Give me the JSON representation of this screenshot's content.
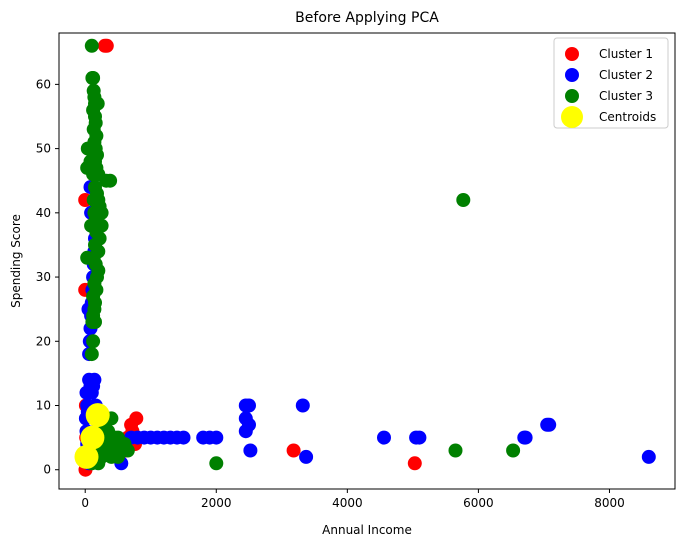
{
  "chart_data": {
    "type": "scatter",
    "title": "Before Applying PCA",
    "xlabel": "Annual Income",
    "ylabel": "Spending Score",
    "xlim": [
      -400,
      9000
    ],
    "ylim": [
      -3,
      68
    ],
    "xticks": [
      0,
      2000,
      4000,
      6000,
      8000
    ],
    "yticks": [
      0,
      10,
      20,
      30,
      40,
      50,
      60
    ],
    "grid": false,
    "legend_position": "top-right",
    "series": [
      {
        "name": "Cluster 1",
        "color": "#ff0000",
        "points": [
          [
            330,
            66
          ],
          [
            300,
            66
          ],
          [
            0,
            42
          ],
          [
            0,
            28
          ],
          [
            5,
            0
          ],
          [
            20,
            1
          ],
          [
            40,
            2
          ],
          [
            700,
            7
          ],
          [
            780,
            8
          ],
          [
            760,
            4
          ],
          [
            650,
            5
          ],
          [
            600,
            3
          ],
          [
            720,
            6
          ],
          [
            3180,
            3
          ],
          [
            5030,
            1
          ],
          [
            10,
            10
          ],
          [
            15,
            5
          ],
          [
            30,
            3
          ]
        ]
      },
      {
        "name": "Cluster 2",
        "color": "#0000ff",
        "points": [
          [
            50,
            25
          ],
          [
            60,
            18
          ],
          [
            70,
            20
          ],
          [
            80,
            22
          ],
          [
            90,
            24
          ],
          [
            100,
            26
          ],
          [
            110,
            28
          ],
          [
            120,
            30
          ],
          [
            130,
            32
          ],
          [
            140,
            34
          ],
          [
            150,
            36
          ],
          [
            100,
            38
          ],
          [
            90,
            40
          ],
          [
            80,
            44
          ],
          [
            60,
            14
          ],
          [
            80,
            13
          ],
          [
            100,
            12
          ],
          [
            120,
            13
          ],
          [
            140,
            14
          ],
          [
            160,
            10
          ],
          [
            200,
            9
          ],
          [
            240,
            8
          ],
          [
            280,
            7
          ],
          [
            20,
            12
          ],
          [
            30,
            10
          ],
          [
            40,
            9
          ],
          [
            10,
            8
          ],
          [
            20,
            6
          ],
          [
            30,
            4
          ],
          [
            40,
            3
          ],
          [
            50,
            2
          ],
          [
            60,
            1
          ],
          [
            80,
            5
          ],
          [
            120,
            4
          ],
          [
            160,
            6
          ],
          [
            200,
            5
          ],
          [
            300,
            4
          ],
          [
            400,
            3
          ],
          [
            500,
            2
          ],
          [
            550,
            1
          ],
          [
            600,
            4
          ],
          [
            700,
            5
          ],
          [
            800,
            5
          ],
          [
            900,
            5
          ],
          [
            1000,
            5
          ],
          [
            1100,
            5
          ],
          [
            1200,
            5
          ],
          [
            1300,
            5
          ],
          [
            1400,
            5
          ],
          [
            1500,
            5
          ],
          [
            1800,
            5
          ],
          [
            1900,
            5
          ],
          [
            2000,
            5
          ],
          [
            2450,
            10
          ],
          [
            2500,
            10
          ],
          [
            2450,
            8
          ],
          [
            2500,
            7
          ],
          [
            2450,
            6
          ],
          [
            2520,
            3
          ],
          [
            3320,
            10
          ],
          [
            3370,
            2
          ],
          [
            4560,
            5
          ],
          [
            5050,
            5
          ],
          [
            5100,
            5
          ],
          [
            6700,
            5
          ],
          [
            6720,
            5
          ],
          [
            7050,
            7
          ],
          [
            7080,
            7
          ],
          [
            8600,
            2
          ]
        ]
      },
      {
        "name": "Cluster 3",
        "color": "#008000",
        "points": [
          [
            100,
            66
          ],
          [
            110,
            61
          ],
          [
            120,
            61
          ],
          [
            130,
            59
          ],
          [
            140,
            58
          ],
          [
            150,
            57
          ],
          [
            190,
            57
          ],
          [
            120,
            56
          ],
          [
            150,
            55
          ],
          [
            160,
            54
          ],
          [
            130,
            53
          ],
          [
            170,
            52
          ],
          [
            140,
            51
          ],
          [
            160,
            50
          ],
          [
            40,
            50
          ],
          [
            180,
            49
          ],
          [
            80,
            48
          ],
          [
            150,
            48
          ],
          [
            170,
            47
          ],
          [
            30,
            47
          ],
          [
            120,
            46
          ],
          [
            200,
            46
          ],
          [
            320,
            45
          ],
          [
            380,
            45
          ],
          [
            150,
            44
          ],
          [
            180,
            43
          ],
          [
            200,
            42
          ],
          [
            130,
            42
          ],
          [
            220,
            41
          ],
          [
            140,
            40
          ],
          [
            250,
            40
          ],
          [
            160,
            39
          ],
          [
            200,
            38
          ],
          [
            250,
            38
          ],
          [
            90,
            38
          ],
          [
            170,
            37
          ],
          [
            220,
            36
          ],
          [
            150,
            35
          ],
          [
            200,
            34
          ],
          [
            130,
            33
          ],
          [
            30,
            33
          ],
          [
            160,
            32
          ],
          [
            200,
            31
          ],
          [
            180,
            30
          ],
          [
            140,
            29
          ],
          [
            170,
            28
          ],
          [
            120,
            27
          ],
          [
            150,
            26
          ],
          [
            140,
            25
          ],
          [
            120,
            24
          ],
          [
            150,
            23
          ],
          [
            110,
            23
          ],
          [
            120,
            20
          ],
          [
            100,
            18
          ],
          [
            5770,
            42
          ],
          [
            400,
            8
          ],
          [
            300,
            7
          ],
          [
            250,
            6
          ],
          [
            350,
            6
          ],
          [
            200,
            5
          ],
          [
            450,
            5
          ],
          [
            500,
            5
          ],
          [
            550,
            4
          ],
          [
            600,
            4
          ],
          [
            650,
            3
          ],
          [
            150,
            3
          ],
          [
            300,
            3
          ],
          [
            400,
            2
          ],
          [
            500,
            2
          ],
          [
            100,
            1
          ],
          [
            200,
            1
          ],
          [
            2000,
            1
          ],
          [
            5650,
            3
          ],
          [
            6530,
            3
          ],
          [
            250,
            2
          ],
          [
            350,
            4
          ],
          [
            450,
            3
          ]
        ]
      },
      {
        "name": "Centroids",
        "color": "#ffff00",
        "points": [
          [
            190,
            8.5
          ],
          [
            110,
            5
          ],
          [
            20,
            2
          ]
        ]
      }
    ]
  }
}
